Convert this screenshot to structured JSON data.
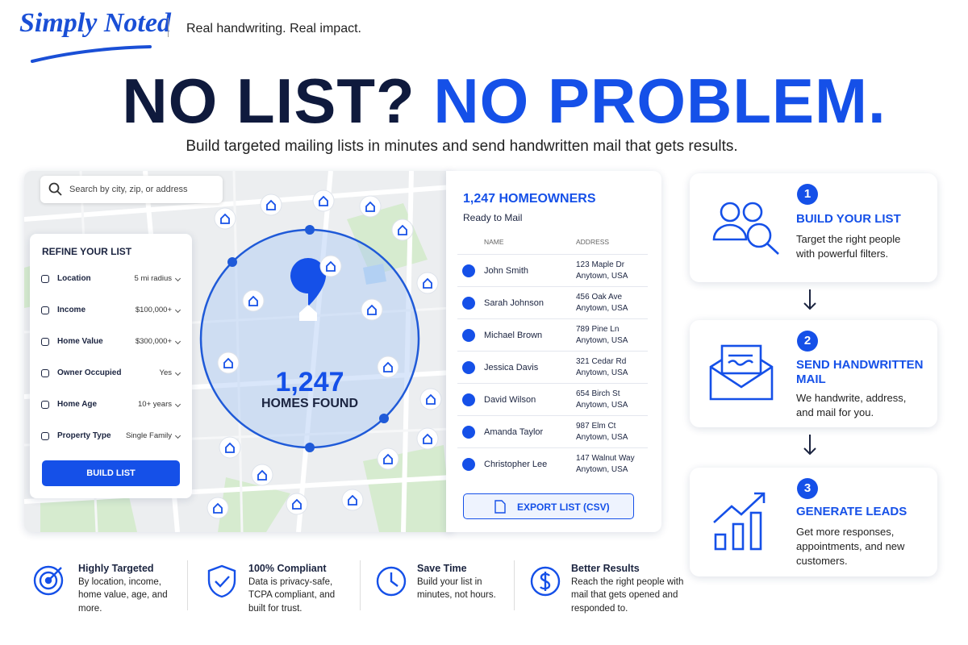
{
  "header": {
    "logo": "Simply Noted",
    "tagline": "Real handwriting. Real impact."
  },
  "hero": {
    "title_part1": "NO LIST?",
    "title_part2": "NO PROBLEM.",
    "subtitle": "Build targeted mailing lists in minutes and send handwritten mail that gets results."
  },
  "search": {
    "placeholder": "Search by city, zip, or address"
  },
  "filters": {
    "title": "REFINE YOUR LIST",
    "rows": [
      [
        "Location",
        "5 mi radius"
      ],
      [
        "Income",
        "$100,000+"
      ],
      [
        "Home Value",
        "$300,000+"
      ],
      [
        "Owner Occupied",
        "Yes"
      ],
      [
        "Home Age",
        "10+ years"
      ],
      [
        "Property Type",
        "Single Family"
      ]
    ],
    "button": "BUILD LIST"
  },
  "map": {
    "count": "1,247",
    "label": "HOMES FOUND"
  },
  "list": {
    "title": "1,247 HOMEOWNERS",
    "subtitle": "Ready to Mail",
    "columns": [
      "NAME",
      "ADDRESS"
    ],
    "rows": [
      [
        "John Smith",
        "123 Maple Dr",
        "Anytown, USA"
      ],
      [
        "Sarah Johnson",
        "456 Oak Ave",
        "Anytown, USA"
      ],
      [
        "Michael Brown",
        "789 Pine Ln",
        "Anytown, USA"
      ],
      [
        "Jessica Davis",
        "321 Cedar Rd",
        "Anytown, USA"
      ],
      [
        "David Wilson",
        "654 Birch St",
        "Anytown, USA"
      ],
      [
        "Amanda Taylor",
        "987 Elm Ct",
        "Anytown, USA"
      ],
      [
        "Christopher Lee",
        "147 Walnut Way",
        "Anytown, USA"
      ]
    ],
    "export": "EXPORT LIST (CSV)"
  },
  "steps": [
    {
      "number": "1",
      "title": "BUILD YOUR LIST",
      "text": "Target the right people with powerful filters."
    },
    {
      "number": "2",
      "title": "SEND HANDWRITTEN MAIL",
      "text": "We handwrite, address, and mail for you."
    },
    {
      "number": "3",
      "title": "GENERATE LEADS",
      "text": "Get more responses, appointments, and new customers."
    }
  ],
  "features": [
    {
      "title": "Highly Targeted",
      "text": "By location, income, home value, age, and more."
    },
    {
      "title": "100% Compliant",
      "text": "Data is privacy-safe, TCPA compliant, and built for trust."
    },
    {
      "title": "Save Time",
      "text": "Build your list in minutes, not hours."
    },
    {
      "title": "Better Results",
      "text": "Reach the right people with mail that gets opened and responded to."
    }
  ]
}
